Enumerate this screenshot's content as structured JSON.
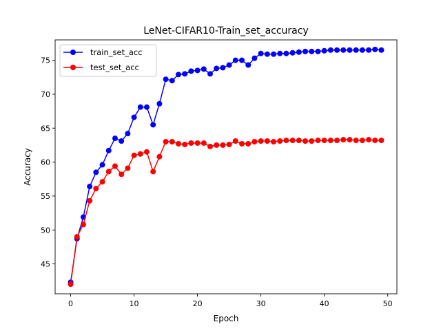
{
  "chart_data": {
    "type": "line",
    "title": "LeNet-CIFAR10-Train_set_accuracy",
    "xlabel": "Epoch",
    "ylabel": "Accuracy",
    "xlim": [
      -2.45,
      51.45
    ],
    "ylim": [
      40.6,
      78.0
    ],
    "xticks": [
      0,
      10,
      20,
      30,
      40,
      50
    ],
    "yticks": [
      45,
      50,
      55,
      60,
      65,
      70,
      75
    ],
    "grid": false,
    "legend_position": "upper-left",
    "x": [
      0,
      1,
      2,
      3,
      4,
      5,
      6,
      7,
      8,
      9,
      10,
      11,
      12,
      13,
      14,
      15,
      16,
      17,
      18,
      19,
      20,
      21,
      22,
      23,
      24,
      25,
      26,
      27,
      28,
      29,
      30,
      31,
      32,
      33,
      34,
      35,
      36,
      37,
      38,
      39,
      40,
      41,
      42,
      43,
      44,
      45,
      46,
      47,
      48,
      49
    ],
    "series": [
      {
        "name": "train_set_acc",
        "color": "#0000ff",
        "values": [
          42.3,
          48.7,
          51.9,
          56.4,
          58.5,
          59.6,
          61.7,
          63.5,
          63.1,
          64.2,
          66.6,
          68.1,
          68.1,
          65.5,
          68.6,
          72.2,
          72.0,
          72.9,
          73.0,
          73.4,
          73.5,
          73.7,
          73.0,
          73.8,
          73.9,
          74.3,
          75.0,
          75.0,
          74.3,
          75.3,
          76.0,
          75.9,
          75.9,
          76.0,
          76.0,
          76.1,
          76.2,
          76.3,
          76.3,
          76.3,
          76.4,
          76.5,
          76.5,
          76.5,
          76.5,
          76.5,
          76.5,
          76.5,
          76.6,
          76.5
        ]
      },
      {
        "name": "test_set_acc",
        "color": "#ff0000",
        "values": [
          42.0,
          49.0,
          50.8,
          54.3,
          56.1,
          57.1,
          58.6,
          59.4,
          58.2,
          59.1,
          61.0,
          61.2,
          61.5,
          58.6,
          60.8,
          63.0,
          63.0,
          62.7,
          62.6,
          62.8,
          62.8,
          62.8,
          62.3,
          62.5,
          62.5,
          62.6,
          63.1,
          62.7,
          62.7,
          63.0,
          63.1,
          63.1,
          63.0,
          63.1,
          63.2,
          63.2,
          63.2,
          63.1,
          63.1,
          63.2,
          63.2,
          63.2,
          63.2,
          63.3,
          63.3,
          63.2,
          63.2,
          63.3,
          63.2,
          63.2
        ]
      }
    ]
  }
}
